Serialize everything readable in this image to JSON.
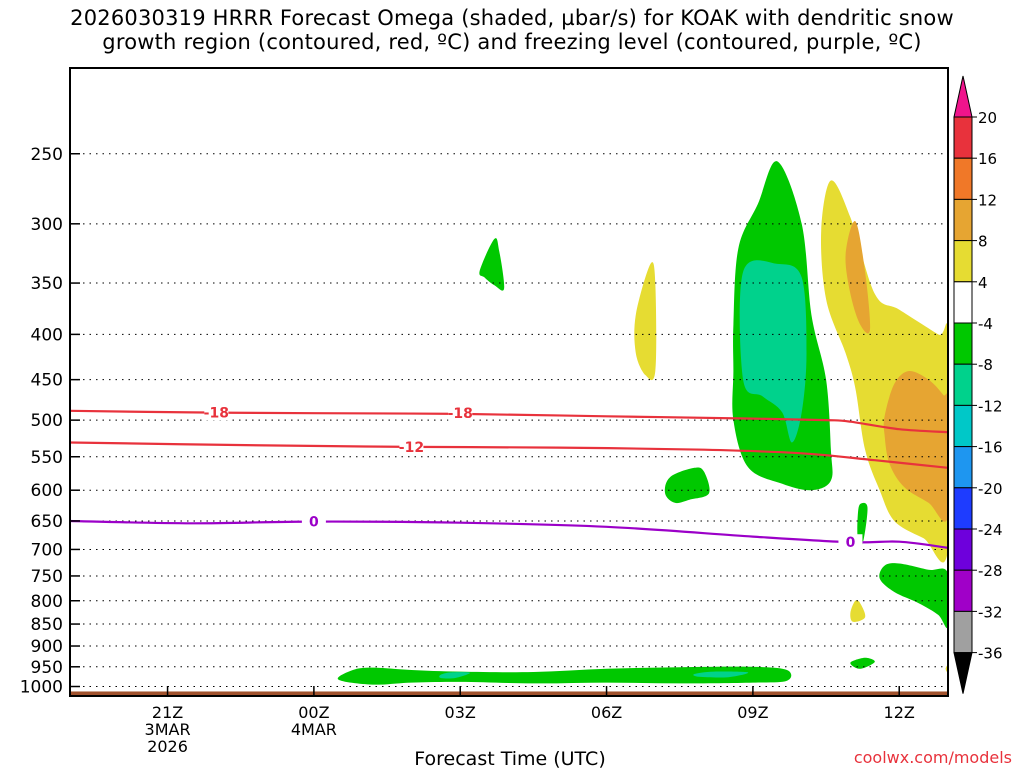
{
  "title": {
    "line1": "2026030319 HRRR Forecast Omega (shaded, µbar/s) for KOAK with dendritic snow",
    "line2": "growth region (contoured, red, ºC) and freezing level (contoured, purple, ºC)"
  },
  "credit": "coolwx.com/models",
  "chart_data": {
    "type": "time-height",
    "xlabel": "Forecast Time (UTC)",
    "ylabel": "",
    "x_range_hours": [
      -2.0,
      16.0
    ],
    "y_range_mb": [
      1025,
      200
    ],
    "x_ticks": [
      {
        "hour": 0,
        "lines": [
          "21Z",
          "3MAR",
          "2026"
        ]
      },
      {
        "hour": 3,
        "lines": [
          "00Z",
          "4MAR"
        ]
      },
      {
        "hour": 6,
        "lines": [
          "03Z"
        ]
      },
      {
        "hour": 9,
        "lines": [
          "06Z"
        ]
      },
      {
        "hour": 12,
        "lines": [
          "09Z"
        ]
      },
      {
        "hour": 15,
        "lines": [
          "12Z"
        ]
      }
    ],
    "y_ticks": [
      250,
      300,
      350,
      400,
      450,
      500,
      550,
      600,
      650,
      700,
      750,
      800,
      850,
      900,
      950,
      1000
    ],
    "grid": true,
    "ground_color": "#a0522d",
    "colorbar": {
      "labels": [
        "20",
        "16",
        "12",
        "8",
        "4",
        "-4",
        "-8",
        "-12",
        "-16",
        "-20",
        "-24",
        "-28",
        "-32",
        "-36"
      ],
      "colors": [
        "#e8323c",
        "#f07828",
        "#e6a532",
        "#e6dc32",
        "#ffffff",
        "#00c800",
        "#00d28c",
        "#00c8c8",
        "#1e96f0",
        "#1e3cff",
        "#6e00dc",
        "#a000c8",
        "#a0a0a0"
      ],
      "top_color": "#f0148c",
      "bottom_color": "#000000"
    },
    "contours": [
      {
        "name": "-18",
        "color": "#e8323c",
        "points": [
          [
            -2.0,
            488
          ],
          [
            0.5,
            490
          ],
          [
            3.0,
            491
          ],
          [
            6.0,
            492
          ],
          [
            9.0,
            495
          ],
          [
            12.0,
            498
          ],
          [
            13.5,
            500
          ],
          [
            14.0,
            502
          ],
          [
            15.0,
            512
          ],
          [
            16.0,
            516
          ]
        ],
        "labels": [
          [
            1.0,
            490
          ],
          [
            6.0,
            491
          ]
        ]
      },
      {
        "name": "-12",
        "color": "#e8323c",
        "points": [
          [
            -2.0,
            530
          ],
          [
            2.0,
            534
          ],
          [
            5.0,
            536
          ],
          [
            8.0,
            537
          ],
          [
            11.0,
            540
          ],
          [
            13.0,
            545
          ],
          [
            14.5,
            555
          ],
          [
            16.0,
            566
          ]
        ],
        "labels": [
          [
            5.0,
            536
          ]
        ]
      },
      {
        "name": "0",
        "color": "#9b00c8",
        "points": [
          [
            -2.0,
            650
          ],
          [
            0.5,
            654
          ],
          [
            3.0,
            651
          ],
          [
            6.0,
            653
          ],
          [
            9.0,
            660
          ],
          [
            12.0,
            677
          ],
          [
            14.0,
            687
          ],
          [
            15.0,
            686
          ],
          [
            16.0,
            697
          ]
        ],
        "labels": [
          [
            3.0,
            651
          ],
          [
            14.0,
            687
          ]
        ]
      }
    ],
    "omega_regions": [
      {
        "level": -4,
        "points": [
          [
            11.6,
            440
          ],
          [
            11.6,
            390
          ],
          [
            11.7,
            320
          ],
          [
            12.1,
            285
          ],
          [
            12.5,
            255
          ],
          [
            13.0,
            300
          ],
          [
            13.2,
            380
          ],
          [
            13.5,
            450
          ],
          [
            13.6,
            540
          ],
          [
            13.6,
            585
          ],
          [
            13.2,
            600
          ],
          [
            12.6,
            590
          ],
          [
            11.9,
            565
          ],
          [
            11.6,
            500
          ]
        ]
      },
      {
        "level": -8,
        "points": [
          [
            11.8,
            450
          ],
          [
            11.8,
            340
          ],
          [
            12.5,
            333
          ],
          [
            13.0,
            345
          ],
          [
            13.1,
            420
          ],
          [
            13.0,
            490
          ],
          [
            12.8,
            530
          ],
          [
            12.6,
            490
          ],
          [
            12.2,
            470
          ]
        ]
      },
      {
        "level": -4,
        "points": [
          [
            6.4,
            339
          ],
          [
            6.7,
            312
          ],
          [
            6.8,
            322
          ],
          [
            6.9,
            355
          ],
          [
            6.7,
            352
          ],
          [
            6.5,
            345
          ]
        ]
      },
      {
        "level": -4,
        "points": [
          [
            10.3,
            580
          ],
          [
            10.8,
            566
          ],
          [
            11.0,
            572
          ],
          [
            11.1,
            605
          ],
          [
            10.7,
            615
          ],
          [
            10.4,
            620
          ],
          [
            10.2,
            605
          ]
        ]
      },
      {
        "level": -4,
        "points": [
          [
            14.2,
            622
          ],
          [
            14.35,
            628
          ],
          [
            14.25,
            690
          ],
          [
            14.15,
            680
          ],
          [
            14.15,
            640
          ]
        ]
      },
      {
        "level": -4,
        "points": [
          [
            14.6,
            755
          ],
          [
            14.7,
            730
          ],
          [
            15.0,
            726
          ],
          [
            15.6,
            738
          ],
          [
            16.0,
            745
          ],
          [
            16.0,
            855
          ],
          [
            15.8,
            830
          ],
          [
            15.4,
            805
          ],
          [
            14.9,
            782
          ]
        ]
      },
      {
        "level": -4,
        "points": [
          [
            14.0,
            940
          ],
          [
            14.3,
            928
          ],
          [
            14.5,
            938
          ],
          [
            14.2,
            955
          ]
        ]
      },
      {
        "level": 4,
        "points": [
          [
            13.4,
            305
          ],
          [
            13.6,
            268
          ],
          [
            14.0,
            295
          ],
          [
            14.5,
            360
          ],
          [
            15.0,
            375
          ],
          [
            15.8,
            400
          ],
          [
            16.0,
            405
          ],
          [
            16.0,
            700
          ],
          [
            15.5,
            680
          ],
          [
            14.9,
            650
          ],
          [
            14.6,
            600
          ],
          [
            14.3,
            540
          ],
          [
            14.1,
            460
          ],
          [
            13.9,
            420
          ],
          [
            13.5,
            365
          ]
        ]
      },
      {
        "level": 8,
        "points": [
          [
            14.7,
            495
          ],
          [
            14.9,
            455
          ],
          [
            15.2,
            440
          ],
          [
            15.6,
            450
          ],
          [
            15.9,
            468
          ],
          [
            16.0,
            480
          ],
          [
            16.0,
            642
          ],
          [
            15.6,
            620
          ],
          [
            15.1,
            595
          ],
          [
            14.8,
            560
          ],
          [
            14.7,
            520
          ]
        ]
      },
      {
        "level": 8,
        "points": [
          [
            13.9,
            325
          ],
          [
            14.1,
            298
          ],
          [
            14.3,
            340
          ],
          [
            14.4,
            395
          ],
          [
            14.2,
            390
          ],
          [
            14.0,
            360
          ]
        ]
      },
      {
        "level": 4,
        "points": [
          [
            9.6,
            380
          ],
          [
            9.9,
            333
          ],
          [
            10.0,
            350
          ],
          [
            10.0,
            440
          ],
          [
            9.8,
            445
          ],
          [
            9.6,
            420
          ]
        ]
      },
      {
        "level": 4,
        "points": [
          [
            14.0,
            825
          ],
          [
            14.1,
            800
          ],
          [
            14.2,
            805
          ],
          [
            14.3,
            835
          ],
          [
            14.05,
            845
          ]
        ]
      },
      {
        "level": 4,
        "points": [
          [
            15.95,
            955
          ],
          [
            16.0,
            945
          ],
          [
            16.0,
            965
          ]
        ]
      },
      {
        "level": -4,
        "points": [
          [
            3.5,
            982
          ],
          [
            3.8,
            958
          ],
          [
            4.2,
            952
          ],
          [
            5.0,
            958
          ],
          [
            6.0,
            962
          ],
          [
            7.5,
            963
          ],
          [
            9.0,
            955
          ],
          [
            10.5,
            951
          ],
          [
            12.0,
            950
          ],
          [
            12.7,
            958
          ],
          [
            12.7,
            985
          ],
          [
            12.0,
            990
          ],
          [
            10.5,
            992
          ],
          [
            9.0,
            990
          ],
          [
            7.5,
            992
          ],
          [
            6.0,
            988
          ],
          [
            5.0,
            990
          ],
          [
            4.2,
            995
          ]
        ]
      },
      {
        "level": -8,
        "points": [
          [
            5.6,
            970
          ],
          [
            5.8,
            964
          ],
          [
            6.2,
            965
          ],
          [
            5.9,
            978
          ],
          [
            5.6,
            978
          ]
        ]
      },
      {
        "level": -8,
        "points": [
          [
            10.8,
            968
          ],
          [
            11.2,
            962
          ],
          [
            11.9,
            964
          ],
          [
            11.5,
            976
          ],
          [
            10.9,
            975
          ]
        ]
      }
    ]
  }
}
